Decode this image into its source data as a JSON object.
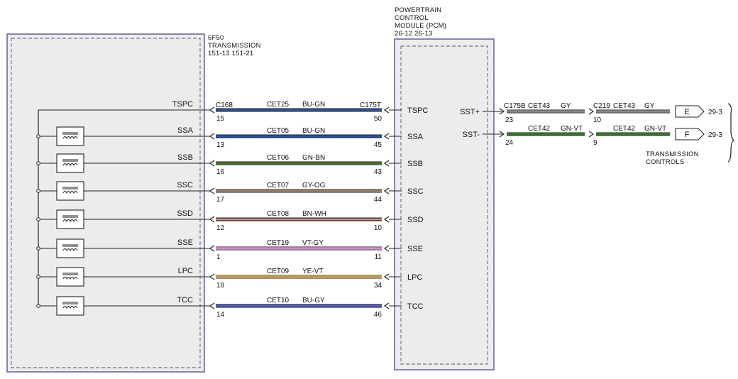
{
  "transmission": {
    "header": [
      "6F50",
      "TRANSMISSION",
      "151-13  151-21"
    ],
    "signals": [
      "TSPC",
      "SSA",
      "SSB",
      "SSC",
      "SSD",
      "SSE",
      "LPC",
      "TCC"
    ]
  },
  "pcm": {
    "header": [
      "POWERTRAIN",
      "CONTROL",
      "MODULE (PCM)",
      "26-12  26-13"
    ],
    "left_signals": [
      "TSPC",
      "SSA",
      "SSB",
      "SSC",
      "SSD",
      "SSE",
      "LPC",
      "TCC"
    ],
    "right_signals": [
      "SST+",
      "SST-"
    ]
  },
  "connectors": {
    "trans_conn": "C168",
    "pcm_conn": "C175T",
    "sst_conn_pcm": "C175B",
    "sst_conn_inline": "C219"
  },
  "wires": [
    {
      "circuit": "CET25",
      "color_code": "BU-GN",
      "pin_left": "15",
      "pin_right": "50",
      "colors": [
        "#1c2fd0",
        "#2e8a2e"
      ]
    },
    {
      "circuit": "CET05",
      "color_code": "BU-GN",
      "pin_left": "13",
      "pin_right": "45",
      "colors": [
        "#1c2fd0",
        "#2e8a2e"
      ]
    },
    {
      "circuit": "CET06",
      "color_code": "GN-BN",
      "pin_left": "16",
      "pin_right": "43",
      "colors": [
        "#2e7d1f",
        "#7a5230"
      ]
    },
    {
      "circuit": "CET07",
      "color_code": "GY-OG",
      "pin_left": "17",
      "pin_right": "44",
      "colors": [
        "#8a7d70",
        "#c47a3a"
      ]
    },
    {
      "circuit": "CET08",
      "color_code": "BN-WH",
      "pin_left": "12",
      "pin_right": "10",
      "colors": [
        "#8b3a2b",
        "#f0f0f0"
      ]
    },
    {
      "circuit": "CET19",
      "color_code": "VT-GY",
      "pin_left": "1",
      "pin_right": "11",
      "colors": [
        "#e58ae0",
        "#a0a0a0"
      ]
    },
    {
      "circuit": "CET09",
      "color_code": "YE-VT",
      "pin_left": "18",
      "pin_right": "34",
      "colors": [
        "#f0d820",
        "#9a3fbf"
      ]
    },
    {
      "circuit": "CET10",
      "color_code": "BU-GY",
      "pin_left": "14",
      "pin_right": "46",
      "colors": [
        "#1c2fd0",
        "#9a9a9a"
      ]
    }
  ],
  "sst_wires": [
    {
      "signal": "SST+",
      "circuit": "CET43",
      "color_code": "GY",
      "pin_pcm": "23",
      "pin_inline": "10",
      "color": "#888888",
      "terminal": "E",
      "page_ref": "29-3"
    },
    {
      "signal": "SST-",
      "circuit": "CET42",
      "color_code": "GN-VT",
      "pin_pcm": "24",
      "pin_inline": "9",
      "color": "#2e7d1f",
      "terminal": "F",
      "page_ref": "29-3"
    }
  ],
  "transmission_controls": [
    "TRANSMISSION",
    "CONTROLS"
  ],
  "colors": {
    "module_border": "#3a3aa8",
    "module_fill": "#ececec",
    "dash": "#555555",
    "line": "#222222"
  }
}
